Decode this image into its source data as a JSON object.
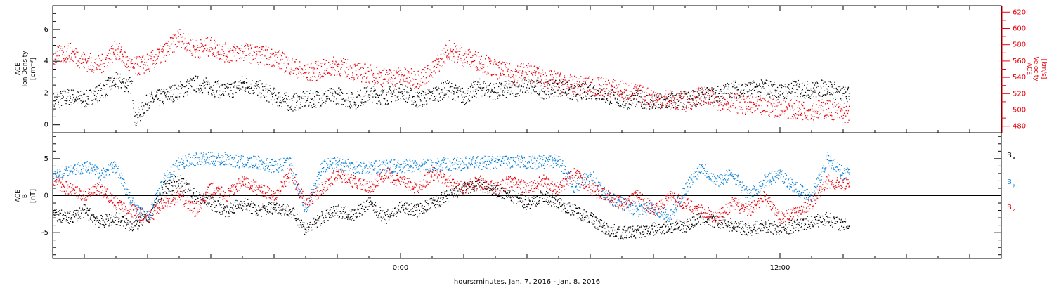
{
  "colors": {
    "black": "#000000",
    "red": "#e8000b",
    "blue": "#0a7fd6"
  },
  "x_axis": {
    "label": "hours:minutes, Jan.  7, 2016 - Jan.  8, 2016",
    "range_hours": [
      -11,
      19
    ],
    "ticks": [
      {
        "h": 0,
        "label": "0:00"
      },
      {
        "h": 12,
        "label": "12:00"
      }
    ],
    "data_end_hours": 14.2
  },
  "chart_data": [
    {
      "type": "scatter",
      "panel": "plasma",
      "ylabel_left": [
        "ACE",
        "Ion Density",
        "[cm⁻³]"
      ],
      "ylabel_right": [
        "ACE",
        "Velocity",
        "[km/s]"
      ],
      "y_left_range": [
        -0.5,
        7.5
      ],
      "y_left_ticks": [
        0,
        2,
        4,
        6
      ],
      "y_right_range": [
        472,
        628
      ],
      "y_right_ticks": [
        480,
        500,
        520,
        540,
        560,
        580,
        600,
        620
      ],
      "series": [
        {
          "key": "density",
          "axis": "left",
          "color": "black",
          "points": [
            [
              -11,
              1.5
            ],
            [
              -10.5,
              1.8
            ],
            [
              -10,
              1.6
            ],
            [
              -9.5,
              2.1
            ],
            [
              -9,
              2.8
            ],
            [
              -8.5,
              2.5
            ],
            [
              -8.4,
              0.3
            ],
            [
              -8,
              1.5
            ],
            [
              -7.5,
              1.8
            ],
            [
              -7,
              2.2
            ],
            [
              -6.5,
              2.6
            ],
            [
              -6,
              2.4
            ],
            [
              -5.5,
              2.1
            ],
            [
              -5,
              2.6
            ],
            [
              -4.5,
              2.3
            ],
            [
              -4,
              1.8
            ],
            [
              -3.5,
              1.4
            ],
            [
              -3,
              1.6
            ],
            [
              -2.5,
              1.7
            ],
            [
              -2,
              1.9
            ],
            [
              -1.5,
              1.5
            ],
            [
              -1,
              2.0
            ],
            [
              -0.5,
              1.8
            ],
            [
              0,
              2.2
            ],
            [
              0.5,
              1.6
            ],
            [
              1,
              1.9
            ],
            [
              1.5,
              2.3
            ],
            [
              2,
              1.8
            ],
            [
              2.5,
              2.4
            ],
            [
              3,
              2.1
            ],
            [
              3.5,
              2.3
            ],
            [
              4,
              2.5
            ],
            [
              4.5,
              2.2
            ],
            [
              5,
              2.4
            ],
            [
              5.5,
              2.0
            ],
            [
              6,
              2.2
            ],
            [
              6.5,
              1.9
            ],
            [
              7,
              1.5
            ],
            [
              7.5,
              1.7
            ],
            [
              8,
              1.4
            ],
            [
              8.5,
              1.5
            ],
            [
              9,
              1.6
            ],
            [
              9.5,
              1.8
            ],
            [
              10,
              1.9
            ],
            [
              10.5,
              2.3
            ],
            [
              11,
              2.2
            ],
            [
              11.5,
              2.4
            ],
            [
              12,
              2.1
            ],
            [
              12.5,
              2.3
            ],
            [
              13,
              2.2
            ],
            [
              13.5,
              2.4
            ],
            [
              14,
              1.9
            ]
          ]
        },
        {
          "key": "velocity",
          "axis": "right",
          "color": "red",
          "points": [
            [
              -11,
              565
            ],
            [
              -10.5,
              572
            ],
            [
              -10,
              560
            ],
            [
              -9.5,
              555
            ],
            [
              -9,
              575
            ],
            [
              -8.5,
              552
            ],
            [
              -8,
              558
            ],
            [
              -7.5,
              570
            ],
            [
              -7,
              590
            ],
            [
              -6.5,
              575
            ],
            [
              -6,
              578
            ],
            [
              -5.5,
              570
            ],
            [
              -5,
              572
            ],
            [
              -4.5,
              568
            ],
            [
              -4,
              565
            ],
            [
              -3.5,
              555
            ],
            [
              -3,
              545
            ],
            [
              -2.5,
              550
            ],
            [
              -2,
              555
            ],
            [
              -1.5,
              548
            ],
            [
              -1,
              545
            ],
            [
              -0.5,
              540
            ],
            [
              0,
              542
            ],
            [
              0.5,
              538
            ],
            [
              1,
              548
            ],
            [
              1.5,
              575
            ],
            [
              2,
              565
            ],
            [
              2.5,
              560
            ],
            [
              3,
              550
            ],
            [
              3.5,
              545
            ],
            [
              4,
              548
            ],
            [
              4.5,
              540
            ],
            [
              5,
              535
            ],
            [
              5.5,
              530
            ],
            [
              6,
              530
            ],
            [
              6.5,
              528
            ],
            [
              7,
              525
            ],
            [
              7.5,
              520
            ],
            [
              8,
              515
            ],
            [
              8.5,
              513
            ],
            [
              9,
              510
            ],
            [
              9.5,
              518
            ],
            [
              10,
              512
            ],
            [
              10.5,
              510
            ],
            [
              11,
              505
            ],
            [
              11.5,
              504
            ],
            [
              12,
              503
            ],
            [
              12.5,
              500
            ],
            [
              13,
              500
            ],
            [
              13.5,
              502
            ],
            [
              14,
              496
            ]
          ]
        }
      ]
    },
    {
      "type": "scatter",
      "panel": "magnetic",
      "ylabel_left": [
        "ACE",
        "B",
        "[nT]"
      ],
      "y_range": [
        -8.5,
        8.5
      ],
      "y_ticks": [
        -5,
        0,
        5
      ],
      "zero_line": true,
      "legend": [
        {
          "label": "B",
          "sub": "x",
          "color": "black"
        },
        {
          "label": "B",
          "sub": "y",
          "color": "blue"
        },
        {
          "label": "B",
          "sub": "z",
          "color": "red"
        }
      ],
      "series": [
        {
          "key": "bx",
          "color": "black",
          "points": [
            [
              -11,
              -2.5
            ],
            [
              -10.5,
              -3
            ],
            [
              -10,
              -2
            ],
            [
              -9.5,
              -3.5
            ],
            [
              -9,
              -3
            ],
            [
              -8.5,
              -4
            ],
            [
              -8,
              -3
            ],
            [
              -7.5,
              1
            ],
            [
              -7,
              2
            ],
            [
              -6.5,
              0
            ],
            [
              -6,
              -1
            ],
            [
              -5.5,
              -2
            ],
            [
              -5,
              -1
            ],
            [
              -4.5,
              -2
            ],
            [
              -4,
              -1.5
            ],
            [
              -3.5,
              -2
            ],
            [
              -3,
              -4.5
            ],
            [
              -2.5,
              -3
            ],
            [
              -2,
              -2
            ],
            [
              -1.5,
              -2.5
            ],
            [
              -1,
              -1
            ],
            [
              -0.5,
              -3
            ],
            [
              0,
              -1.5
            ],
            [
              0.5,
              -2
            ],
            [
              1,
              -1
            ],
            [
              1.5,
              0
            ],
            [
              2,
              1
            ],
            [
              2.5,
              1.5
            ],
            [
              3,
              0.5
            ],
            [
              3.5,
              0
            ],
            [
              4,
              -1
            ],
            [
              4.5,
              0
            ],
            [
              5,
              -1
            ],
            [
              5.5,
              -2
            ],
            [
              6,
              -3
            ],
            [
              6.5,
              -4.5
            ],
            [
              7,
              -5
            ],
            [
              7.5,
              -4.8
            ],
            [
              8,
              -4.5
            ],
            [
              8.5,
              -4.2
            ],
            [
              9,
              -4
            ],
            [
              9.5,
              -3
            ],
            [
              10,
              -3.5
            ],
            [
              10.5,
              -4
            ],
            [
              11,
              -4.5
            ],
            [
              11.5,
              -4
            ],
            [
              12,
              -4.5
            ],
            [
              12.5,
              -4
            ],
            [
              13,
              -3.5
            ],
            [
              13.5,
              -3
            ],
            [
              14,
              -4
            ]
          ]
        },
        {
          "key": "by",
          "color": "blue",
          "points": [
            [
              -11,
              3
            ],
            [
              -10.5,
              3.5
            ],
            [
              -10,
              4
            ],
            [
              -9.5,
              3
            ],
            [
              -9,
              4
            ],
            [
              -8.5,
              -1
            ],
            [
              -8,
              -3
            ],
            [
              -7.5,
              2
            ],
            [
              -7,
              4.5
            ],
            [
              -6.5,
              5
            ],
            [
              -6,
              5
            ],
            [
              -5.5,
              5
            ],
            [
              -5,
              4.5
            ],
            [
              -4.5,
              4.5
            ],
            [
              -4,
              4
            ],
            [
              -3.5,
              4.5
            ],
            [
              -3,
              -2
            ],
            [
              -2.5,
              4
            ],
            [
              -2,
              4.5
            ],
            [
              -1.5,
              4
            ],
            [
              -1,
              3.8
            ],
            [
              -0.5,
              4
            ],
            [
              0,
              4
            ],
            [
              0.5,
              4
            ],
            [
              1,
              4.2
            ],
            [
              1.5,
              4.3
            ],
            [
              2,
              4.4
            ],
            [
              2.5,
              4.5
            ],
            [
              3,
              4.5
            ],
            [
              3.5,
              4.6
            ],
            [
              4,
              4.5
            ],
            [
              4.5,
              4.6
            ],
            [
              5,
              4.8
            ],
            [
              5.5,
              1
            ],
            [
              6,
              3
            ],
            [
              6.5,
              0
            ],
            [
              7,
              -1
            ],
            [
              7.5,
              -2
            ],
            [
              8,
              -1.5
            ],
            [
              8.5,
              -3
            ],
            [
              9,
              1
            ],
            [
              9.5,
              4
            ],
            [
              10,
              2
            ],
            [
              10.5,
              3
            ],
            [
              11,
              0
            ],
            [
              11.5,
              2
            ],
            [
              12,
              3
            ],
            [
              12.5,
              1
            ],
            [
              13,
              0
            ],
            [
              13.5,
              5
            ],
            [
              14,
              3
            ]
          ]
        },
        {
          "key": "bz",
          "color": "red",
          "points": [
            [
              -11,
              2
            ],
            [
              -10.5,
              1
            ],
            [
              -10,
              0
            ],
            [
              -9.5,
              1
            ],
            [
              -9,
              -1
            ],
            [
              -8.5,
              -2
            ],
            [
              -8,
              -3
            ],
            [
              -7.5,
              -1
            ],
            [
              -7,
              0
            ],
            [
              -6.5,
              -2
            ],
            [
              -6,
              1
            ],
            [
              -5.5,
              0
            ],
            [
              -5,
              2
            ],
            [
              -4.5,
              1
            ],
            [
              -4,
              0
            ],
            [
              -3.5,
              3
            ],
            [
              -3,
              -1
            ],
            [
              -2.5,
              1
            ],
            [
              -2,
              3
            ],
            [
              -1.5,
              2
            ],
            [
              -1,
              1
            ],
            [
              -0.5,
              3
            ],
            [
              0,
              2
            ],
            [
              0.5,
              1
            ],
            [
              1,
              3
            ],
            [
              1.5,
              2
            ],
            [
              2,
              1
            ],
            [
              2.5,
              2
            ],
            [
              3,
              1
            ],
            [
              3.5,
              2
            ],
            [
              4,
              1
            ],
            [
              4.5,
              2
            ],
            [
              5,
              1
            ],
            [
              5.5,
              3
            ],
            [
              6,
              1
            ],
            [
              6.5,
              0
            ],
            [
              7,
              -1
            ],
            [
              7.5,
              0
            ],
            [
              8,
              -2
            ],
            [
              8.5,
              0
            ],
            [
              9,
              -1
            ],
            [
              9.5,
              -2
            ],
            [
              10,
              -3
            ],
            [
              10.5,
              -1
            ],
            [
              11,
              -2
            ],
            [
              11.5,
              0
            ],
            [
              12,
              -3
            ],
            [
              12.5,
              -2
            ],
            [
              13,
              -1
            ],
            [
              13.5,
              2
            ],
            [
              14,
              1.5
            ]
          ]
        }
      ]
    }
  ]
}
